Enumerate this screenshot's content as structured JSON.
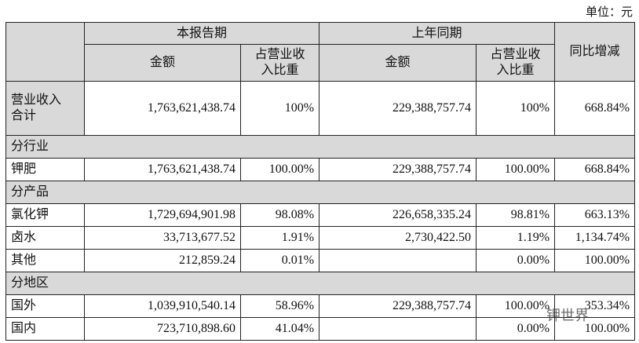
{
  "unit": "单位：元",
  "watermark": "钾世界",
  "table": {
    "groups": [
      "本报告期",
      "上年同期",
      "同比增减"
    ],
    "columns": [
      "金额",
      "占营业收入比重",
      "金额",
      "占营业收入比重"
    ],
    "rows": [
      {
        "label": "营业收入合计",
        "values": [
          "1,763,621,438.74",
          "100%",
          "229,388,757.74",
          "100%",
          "668.84%"
        ]
      },
      {
        "section": "分行业"
      },
      {
        "label": "钾肥",
        "values": [
          "1,763,621,438.74",
          "100.00%",
          "229,388,757.74",
          "100.00%",
          "668.84%"
        ]
      },
      {
        "section": "分产品"
      },
      {
        "label": "氯化钾",
        "values": [
          "1,729,694,901.98",
          "98.08%",
          "226,658,335.24",
          "98.81%",
          "663.13%"
        ]
      },
      {
        "label": "卤水",
        "values": [
          "33,713,677.52",
          "1.91%",
          "2,730,422.50",
          "1.19%",
          "1,134.74%"
        ]
      },
      {
        "label": "其他",
        "values": [
          "212,859.24",
          "0.01%",
          null,
          "0.00%",
          "100.00%"
        ]
      },
      {
        "section": "分地区"
      },
      {
        "label": "国外",
        "values": [
          "1,039,910,540.14",
          "58.96%",
          "229,388,757.74",
          "100.00%",
          "353.34%"
        ]
      },
      {
        "label": "国内",
        "values": [
          "723,710,898.60",
          "41.04%",
          null,
          "0.00%",
          "100.00%"
        ]
      }
    ]
  }
}
